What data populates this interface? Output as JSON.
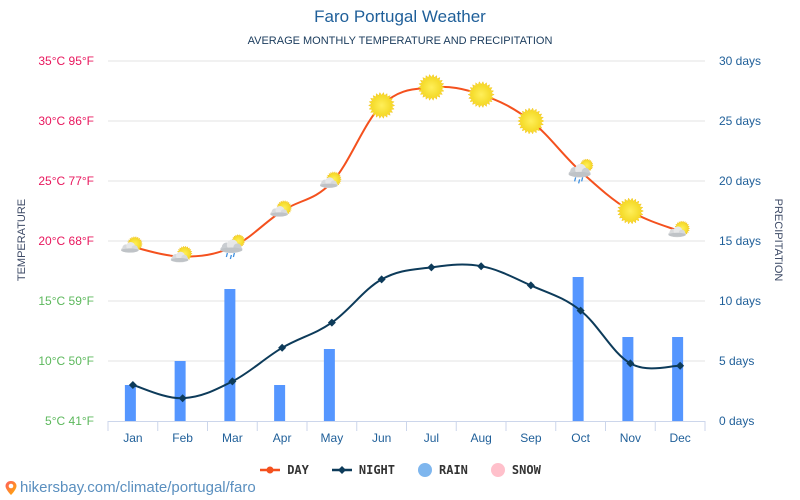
{
  "header": {
    "title": "Faro Portugal Weather",
    "subtitle": "AVERAGE MONTHLY TEMPERATURE AND PRECIPITATION"
  },
  "footer": {
    "icon": "location-pin-icon",
    "url": "hikersbay.com/climate/portugal/faro"
  },
  "colors": {
    "day": "#f4511e",
    "night": "#0d3b5a",
    "rain": "#5596ff",
    "rain_legend": "#7eb6ee",
    "snow": "#ffc0cb",
    "warm_tick": "#e8175d",
    "cool_tick": "#5cb85c",
    "right_tick": "#1f5f99",
    "grid": "#e3e3e3"
  },
  "chart_data": {
    "type": "line+bar",
    "title": "Faro Portugal Weather",
    "subtitle": "AVERAGE MONTHLY TEMPERATURE AND PRECIPITATION",
    "categories": [
      "Jan",
      "Feb",
      "Mar",
      "Apr",
      "May",
      "Jun",
      "Jul",
      "Aug",
      "Sep",
      "Oct",
      "Nov",
      "Dec"
    ],
    "ylabel_left": "TEMPERATURE",
    "ylabel_right": "PRECIPITATION",
    "ylim_left": [
      5,
      35
    ],
    "ylim_right": [
      0,
      30
    ],
    "yticks_left": [
      "5°C 41°F",
      "10°C 50°F",
      "15°C 59°F",
      "20°C 68°F",
      "25°C 77°F",
      "30°C 86°F",
      "35°C 95°F"
    ],
    "yticks_right": [
      "0 days",
      "5 days",
      "10 days",
      "15 days",
      "20 days",
      "25 days",
      "30 days"
    ],
    "grid": true,
    "legend_position": "bottom",
    "series": [
      {
        "name": "DAY",
        "kind": "line",
        "axis": "left",
        "values": [
          19.5,
          18.7,
          19.5,
          22.5,
          24.9,
          31.3,
          32.8,
          32.2,
          30.0,
          25.8,
          22.5,
          20.8
        ],
        "icons": [
          "partly-cloudy",
          "partly-cloudy",
          "rain-sun",
          "partly-cloudy",
          "partly-cloudy",
          "sun",
          "sun",
          "sun",
          "sun",
          "rain-sun",
          "sun",
          "partly-cloudy"
        ]
      },
      {
        "name": "NIGHT",
        "kind": "line",
        "axis": "left",
        "values": [
          8.0,
          6.9,
          8.3,
          11.1,
          13.2,
          16.8,
          17.8,
          17.9,
          16.3,
          14.2,
          9.8,
          9.6
        ]
      },
      {
        "name": "RAIN",
        "kind": "bar",
        "axis": "right",
        "values": [
          3,
          5,
          11,
          3,
          6,
          0,
          0,
          0,
          0,
          12,
          7,
          7
        ]
      },
      {
        "name": "SNOW",
        "kind": "bar",
        "axis": "right",
        "values": [
          0,
          0,
          0,
          0,
          0,
          0,
          0,
          0,
          0,
          0,
          0,
          0
        ]
      }
    ]
  },
  "legend": [
    {
      "label": "DAY",
      "icon": "line-dot-icon"
    },
    {
      "label": "NIGHT",
      "icon": "line-diamond-icon"
    },
    {
      "label": "RAIN",
      "icon": "circle-icon"
    },
    {
      "label": "SNOW",
      "icon": "circle-icon"
    }
  ]
}
